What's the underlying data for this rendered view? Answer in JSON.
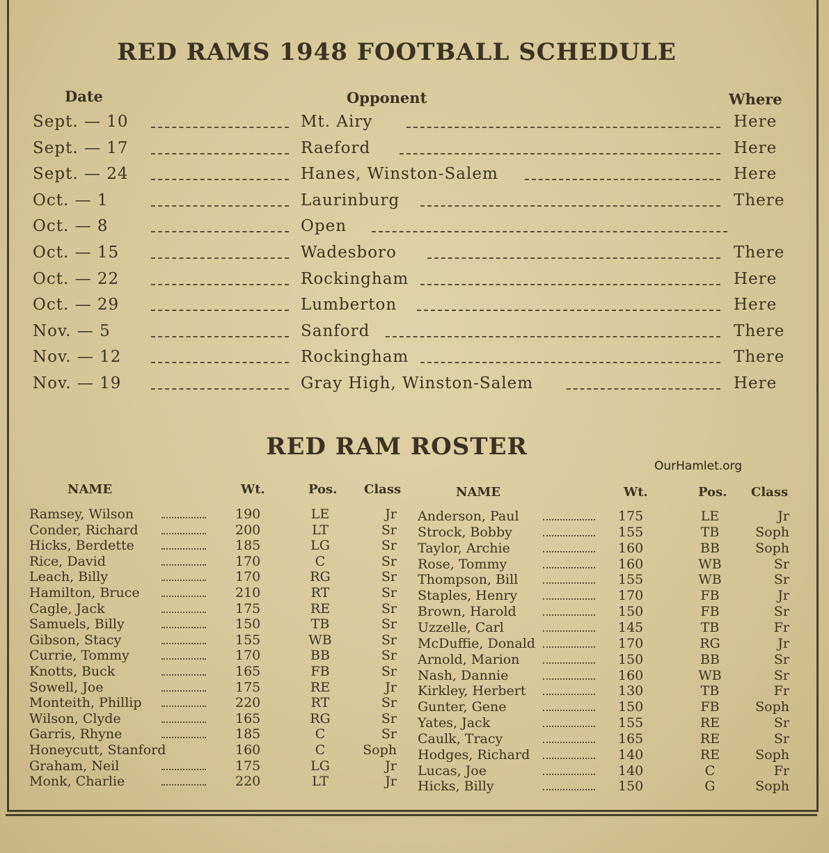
{
  "schedule": {
    "title": "RED RAMS 1948 FOOTBALL  SCHEDULE",
    "headers": {
      "date": "Date",
      "opponent": "Opponent",
      "where": "Where"
    },
    "games": [
      {
        "date": "Sept. — 10",
        "opponent": "Mt.  Airy",
        "where": "Here"
      },
      {
        "date": "Sept. — 17",
        "opponent": "Raeford",
        "where": "Here"
      },
      {
        "date": "Sept. — 24",
        "opponent": "Hanes,  Winston-Salem",
        "where": "Here"
      },
      {
        "date": "Oct. —  1",
        "opponent": "Laurinburg",
        "where": "There"
      },
      {
        "date": "Oct. —  8",
        "opponent": "Open",
        "where": ""
      },
      {
        "date": "Oct. — 15",
        "opponent": "Wadesboro",
        "where": "There"
      },
      {
        "date": "Oct. — 22",
        "opponent": "Rockingham",
        "where": "Here"
      },
      {
        "date": "Oct. — 29",
        "opponent": "Lumberton",
        "where": "Here"
      },
      {
        "date": "Nov. —  5",
        "opponent": "Sanford",
        "where": "There"
      },
      {
        "date": "Nov. — 12",
        "opponent": "Rockingham",
        "where": "There"
      },
      {
        "date": "Nov. — 19",
        "opponent": "Gray High,  Winston-Salem",
        "where": "Here"
      }
    ]
  },
  "roster": {
    "title": "RED RAM ROSTER",
    "headers": {
      "name": "NAME",
      "wt": "Wt.",
      "pos": "Pos.",
      "class": "Class"
    },
    "left": [
      {
        "name": "Ramsey,  Wilson",
        "wt": "190",
        "pos": "LE",
        "class": "Jr"
      },
      {
        "name": "Conder,  Richard",
        "wt": "200",
        "pos": "LT",
        "class": "Sr"
      },
      {
        "name": "Hicks,  Berdette",
        "wt": "185",
        "pos": "LG",
        "class": "Sr"
      },
      {
        "name": "Rice,   David",
        "wt": "170",
        "pos": "C",
        "class": "Sr"
      },
      {
        "name": "Leach,  Billy",
        "wt": "170",
        "pos": "RG",
        "class": "Sr"
      },
      {
        "name": "Hamilton,  Bruce",
        "wt": "210",
        "pos": "RT",
        "class": "Sr"
      },
      {
        "name": "Cagle,   Jack",
        "wt": "175",
        "pos": "RE",
        "class": "Sr"
      },
      {
        "name": "Samuels,  Billy",
        "wt": "150",
        "pos": "TB",
        "class": "Sr"
      },
      {
        "name": "Gibson,  Stacy",
        "wt": "155",
        "pos": "WB",
        "class": "Sr"
      },
      {
        "name": "Currie,  Tommy",
        "wt": "170",
        "pos": "BB",
        "class": "Sr"
      },
      {
        "name": "Knotts,  Buck",
        "wt": "165",
        "pos": "FB",
        "class": "Sr"
      },
      {
        "name": "Sowell,   Joe",
        "wt": "175",
        "pos": "RE",
        "class": "Jr"
      },
      {
        "name": "Monteith,  Phillip",
        "wt": "220",
        "pos": "RT",
        "class": "Sr"
      },
      {
        "name": "Wilson,  Clyde",
        "wt": "165",
        "pos": "RG",
        "class": "Sr"
      },
      {
        "name": "Garris,  Rhyne",
        "wt": "185",
        "pos": "C",
        "class": "Sr"
      },
      {
        "name": "Honeycutt,   Stanford",
        "wt": "160",
        "pos": "C",
        "class": "Soph"
      },
      {
        "name": "Graham,  Neil",
        "wt": "175",
        "pos": "LG",
        "class": "Jr"
      },
      {
        "name": "Monk,  Charlie",
        "wt": "220",
        "pos": "LT",
        "class": "Jr"
      }
    ],
    "right": [
      {
        "name": "Anderson,  Paul",
        "wt": "175",
        "pos": "LE",
        "class": "Jr"
      },
      {
        "name": "Strock,  Bobby",
        "wt": "155",
        "pos": "TB",
        "class": "Soph"
      },
      {
        "name": "Taylor,  Archie",
        "wt": "160",
        "pos": "BB",
        "class": "Soph"
      },
      {
        "name": "Rose,  Tommy",
        "wt": "160",
        "pos": "WB",
        "class": "Sr"
      },
      {
        "name": "Thompson,  Bill",
        "wt": "155",
        "pos": "WB",
        "class": "Sr"
      },
      {
        "name": "Staples,  Henry",
        "wt": "170",
        "pos": "FB",
        "class": "Jr"
      },
      {
        "name": "Brown,   Harold",
        "wt": "150",
        "pos": "FB",
        "class": "Sr"
      },
      {
        "name": "Uzzelle,  Carl",
        "wt": "145",
        "pos": "TB",
        "class": "Fr"
      },
      {
        "name": "McDuffie,  Donald",
        "wt": "170",
        "pos": "RG",
        "class": "Jr"
      },
      {
        "name": "Arnold,  Marion",
        "wt": "150",
        "pos": "BB",
        "class": "Sr"
      },
      {
        "name": "Nash,  Dannie",
        "wt": "160",
        "pos": "WB",
        "class": "Sr"
      },
      {
        "name": "Kirkley,  Herbert",
        "wt": "130",
        "pos": "TB",
        "class": "Fr"
      },
      {
        "name": "Gunter,  Gene",
        "wt": "150",
        "pos": "FB",
        "class": "Soph"
      },
      {
        "name": "Yates,  Jack",
        "wt": "155",
        "pos": "RE",
        "class": "Sr"
      },
      {
        "name": "Caulk,  Tracy",
        "wt": "165",
        "pos": "RE",
        "class": "Sr"
      },
      {
        "name": "Hodges, Richard",
        "wt": "140",
        "pos": "RE",
        "class": "Soph"
      },
      {
        "name": "Lucas,  Joe",
        "wt": "140",
        "pos": "C",
        "class": "Fr"
      },
      {
        "name": "Hicks,  Billy",
        "wt": "150",
        "pos": "G",
        "class": "Soph"
      }
    ]
  },
  "watermark": "OurHamlet.org"
}
